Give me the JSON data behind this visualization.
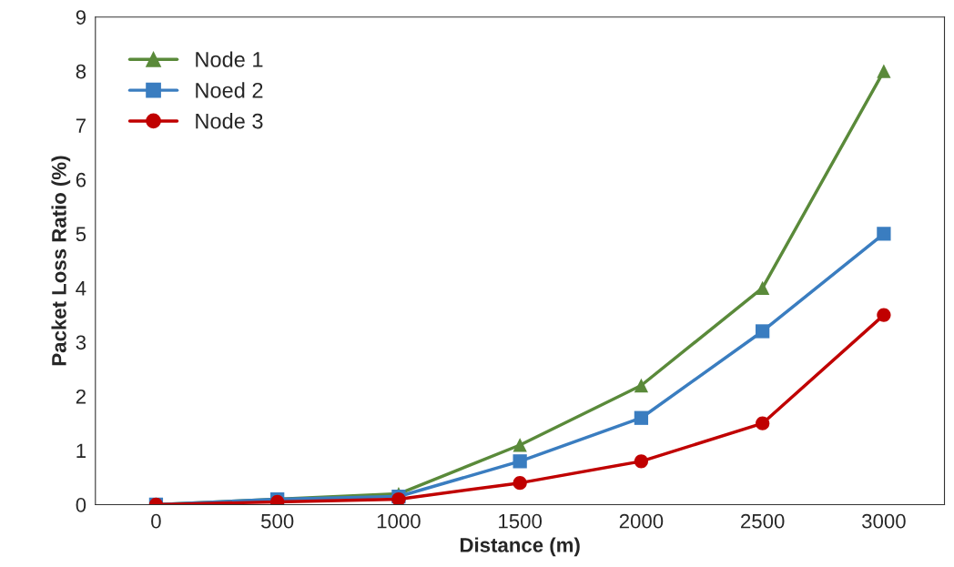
{
  "chart_data": {
    "type": "line",
    "xlabel": "Distance (m)",
    "ylabel": "Packet Loss Ratio (%)",
    "categories": [
      "0",
      "500",
      "1000",
      "1500",
      "2000",
      "2500",
      "3000"
    ],
    "series": [
      {
        "name": "Node 1",
        "color": "#5a8a3a",
        "marker": "triangle",
        "values": [
          0,
          0.1,
          0.2,
          1.1,
          2.2,
          4.0,
          8.0
        ]
      },
      {
        "name": "Noed 2",
        "color": "#3a7dc0",
        "marker": "square",
        "values": [
          0,
          0.1,
          0.15,
          0.8,
          1.6,
          3.2,
          5.0
        ]
      },
      {
        "name": "Node 3",
        "color": "#c00000",
        "marker": "circle",
        "values": [
          0,
          0.05,
          0.1,
          0.4,
          0.8,
          1.5,
          3.5
        ]
      }
    ],
    "ylim": [
      0,
      9
    ],
    "yticks": [
      0,
      1,
      2,
      3,
      4,
      5,
      6,
      7,
      8,
      9
    ],
    "grid": false,
    "legend": "top left",
    "line_style": "solid"
  }
}
